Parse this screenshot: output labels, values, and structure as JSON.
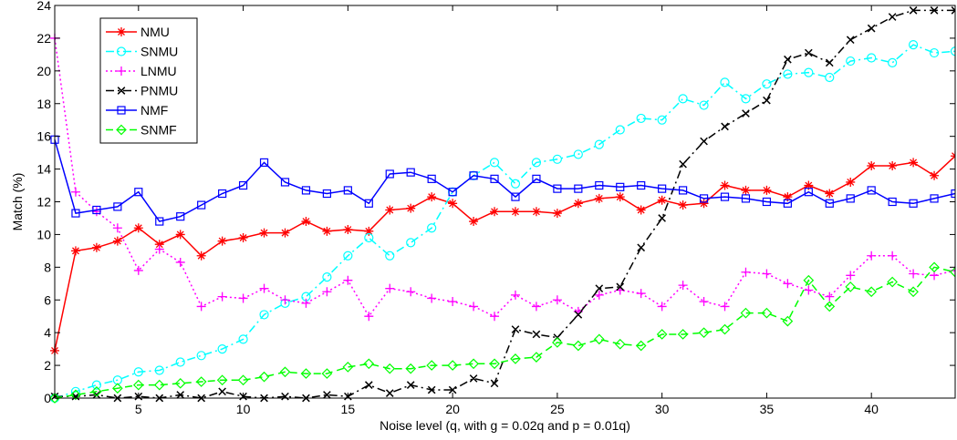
{
  "chart_data": {
    "type": "line",
    "title": "",
    "xlabel": "Noise level (q, with g = 0.02q and p = 0.01q)",
    "ylabel": "Match (%)",
    "xlim": [
      1,
      44
    ],
    "ylim": [
      0,
      24
    ],
    "xticks": [
      5,
      10,
      15,
      20,
      25,
      30,
      35,
      40
    ],
    "yticks": [
      0,
      2,
      4,
      6,
      8,
      10,
      12,
      14,
      16,
      18,
      20,
      22,
      24
    ],
    "grid": false,
    "legend_position": "top-left",
    "x": [
      1,
      2,
      3,
      4,
      5,
      6,
      7,
      8,
      9,
      10,
      11,
      12,
      13,
      14,
      15,
      16,
      17,
      18,
      19,
      20,
      21,
      22,
      23,
      24,
      25,
      26,
      27,
      28,
      29,
      30,
      31,
      32,
      33,
      34,
      35,
      36,
      37,
      38,
      39,
      40,
      41,
      42,
      43,
      44
    ],
    "series": [
      {
        "name": "NMU",
        "color": "#ff0000",
        "linestyle": "solid",
        "marker": "asterisk",
        "values": [
          2.9,
          9.0,
          9.2,
          9.6,
          10.4,
          9.4,
          10.0,
          8.7,
          9.6,
          9.8,
          10.1,
          10.1,
          10.8,
          10.2,
          10.3,
          10.2,
          11.5,
          11.6,
          12.3,
          11.9,
          10.8,
          11.4,
          11.4,
          11.4,
          11.3,
          11.9,
          12.2,
          12.3,
          11.5,
          12.1,
          11.8,
          11.9,
          13.0,
          12.7,
          12.7,
          12.3,
          13.0,
          12.5,
          13.2,
          14.2,
          14.2,
          14.4,
          13.6,
          14.8
        ]
      },
      {
        "name": "SNMU",
        "color": "#00ffff",
        "linestyle": "dashdot",
        "marker": "circle",
        "values": [
          0.0,
          0.4,
          0.8,
          1.1,
          1.6,
          1.7,
          2.2,
          2.6,
          3.0,
          3.6,
          5.1,
          5.8,
          6.2,
          7.4,
          8.7,
          9.8,
          8.7,
          9.5,
          10.4,
          12.6,
          13.6,
          14.4,
          13.1,
          14.4,
          14.6,
          14.9,
          15.5,
          16.4,
          17.1,
          17.0,
          18.3,
          17.9,
          19.3,
          18.3,
          19.2,
          19.8,
          19.9,
          19.6,
          20.6,
          20.8,
          20.5,
          21.6,
          21.1,
          21.2
        ]
      },
      {
        "name": "LNMU",
        "color": "#ff00ff",
        "linestyle": "dotted",
        "marker": "plus",
        "values": [
          22.0,
          12.6,
          11.4,
          10.4,
          7.8,
          9.1,
          8.3,
          5.6,
          6.2,
          6.1,
          6.7,
          6.0,
          5.8,
          6.5,
          7.2,
          5.0,
          6.7,
          6.5,
          6.1,
          5.9,
          5.6,
          5.0,
          6.3,
          5.6,
          6.0,
          5.3,
          6.3,
          6.6,
          6.4,
          5.6,
          6.9,
          5.9,
          5.6,
          7.7,
          7.6,
          7.0,
          6.6,
          6.2,
          7.5,
          8.7,
          8.7,
          7.6,
          7.5,
          7.8
        ]
      },
      {
        "name": "PNMU",
        "color": "#000000",
        "linestyle": "dashdot",
        "marker": "cross",
        "values": [
          0.1,
          0.1,
          0.2,
          0.0,
          0.1,
          0.0,
          0.2,
          0.0,
          0.4,
          0.1,
          0.0,
          0.1,
          0.0,
          0.2,
          0.1,
          0.8,
          0.3,
          0.8,
          0.5,
          0.5,
          1.2,
          0.9,
          4.2,
          3.9,
          3.7,
          5.1,
          6.7,
          6.8,
          9.2,
          11.0,
          14.3,
          15.7,
          16.6,
          17.4,
          18.2,
          20.7,
          21.1,
          20.5,
          21.9,
          22.6,
          23.3,
          23.7,
          23.7,
          23.7
        ]
      },
      {
        "name": "NMF",
        "color": "#0000ff",
        "linestyle": "solid",
        "marker": "square",
        "values": [
          15.8,
          11.3,
          11.5,
          11.7,
          12.6,
          10.8,
          11.1,
          11.8,
          12.5,
          13.0,
          14.4,
          13.2,
          12.7,
          12.5,
          12.7,
          11.9,
          13.7,
          13.8,
          13.4,
          12.6,
          13.6,
          13.4,
          12.3,
          13.4,
          12.8,
          12.8,
          13.0,
          12.9,
          13.0,
          12.8,
          12.7,
          12.2,
          12.3,
          12.2,
          12.0,
          11.9,
          12.6,
          11.9,
          12.2,
          12.7,
          12.0,
          11.9,
          12.2,
          12.5
        ]
      },
      {
        "name": "SNMF",
        "color": "#00ff00",
        "linestyle": "dashed",
        "marker": "diamond",
        "values": [
          0.0,
          0.2,
          0.4,
          0.6,
          0.8,
          0.8,
          0.9,
          1.0,
          1.1,
          1.1,
          1.3,
          1.6,
          1.5,
          1.5,
          1.9,
          2.1,
          1.8,
          1.8,
          2.0,
          2.0,
          2.1,
          2.1,
          2.4,
          2.5,
          3.4,
          3.2,
          3.6,
          3.3,
          3.2,
          3.9,
          3.9,
          4.0,
          4.2,
          5.2,
          5.2,
          4.7,
          7.2,
          5.6,
          6.8,
          6.5,
          7.1,
          6.5,
          8.0,
          7.7
        ]
      }
    ]
  }
}
